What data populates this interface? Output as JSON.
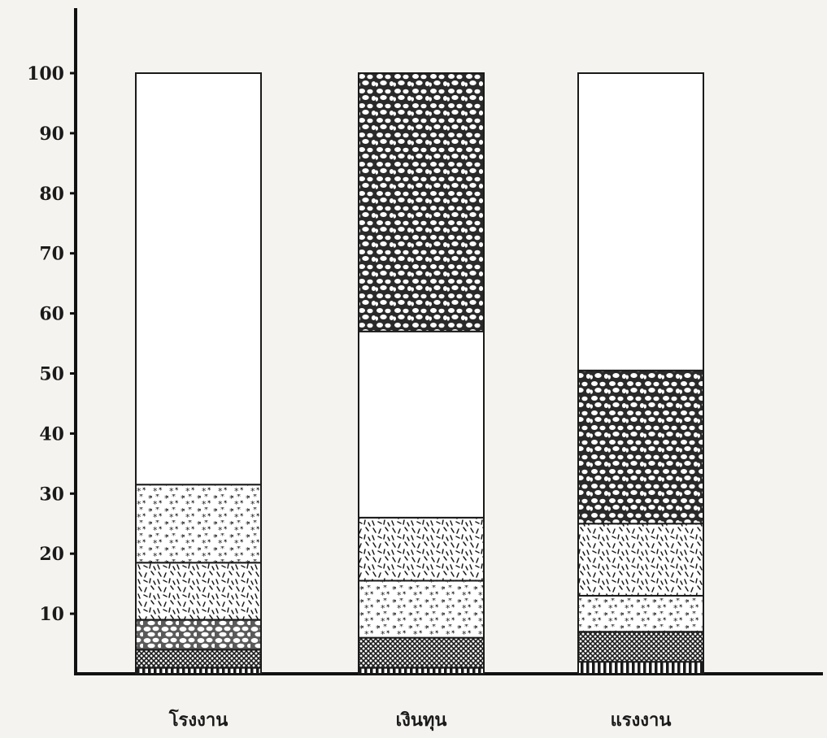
{
  "chart_data": {
    "type": "bar",
    "stacked": true,
    "categories": [
      "โรงงาน",
      "เงินทุน",
      "แรงงาน"
    ],
    "ylim": [
      0,
      100
    ],
    "yticks": [
      10,
      20,
      30,
      40,
      50,
      60,
      70,
      80,
      90,
      100
    ],
    "series": [
      {
        "pattern": "vertical-lines",
        "values": [
          1,
          1,
          2
        ]
      },
      {
        "pattern": "crosshatch",
        "values": [
          3,
          5,
          5
        ]
      },
      {
        "pattern": "pebbles-light",
        "values": [
          5,
          0,
          0
        ]
      },
      {
        "pattern": "stars",
        "values": [
          0,
          9.5,
          6
        ]
      },
      {
        "pattern": "dashes",
        "values": [
          9.5,
          10.5,
          12
        ]
      },
      {
        "pattern": "stars",
        "values": [
          13,
          0,
          0
        ]
      },
      {
        "pattern": "blank",
        "values": [
          0,
          31,
          0
        ]
      },
      {
        "pattern": "pebbles",
        "values": [
          0,
          43,
          25.5
        ]
      },
      {
        "pattern": "blank",
        "values": [
          68.5,
          0,
          49.5
        ]
      }
    ],
    "grid": false,
    "colors": {
      "ink": "#1a1a1a",
      "paper": "#f4f3ef",
      "segment_fill": "#ffffff"
    }
  }
}
